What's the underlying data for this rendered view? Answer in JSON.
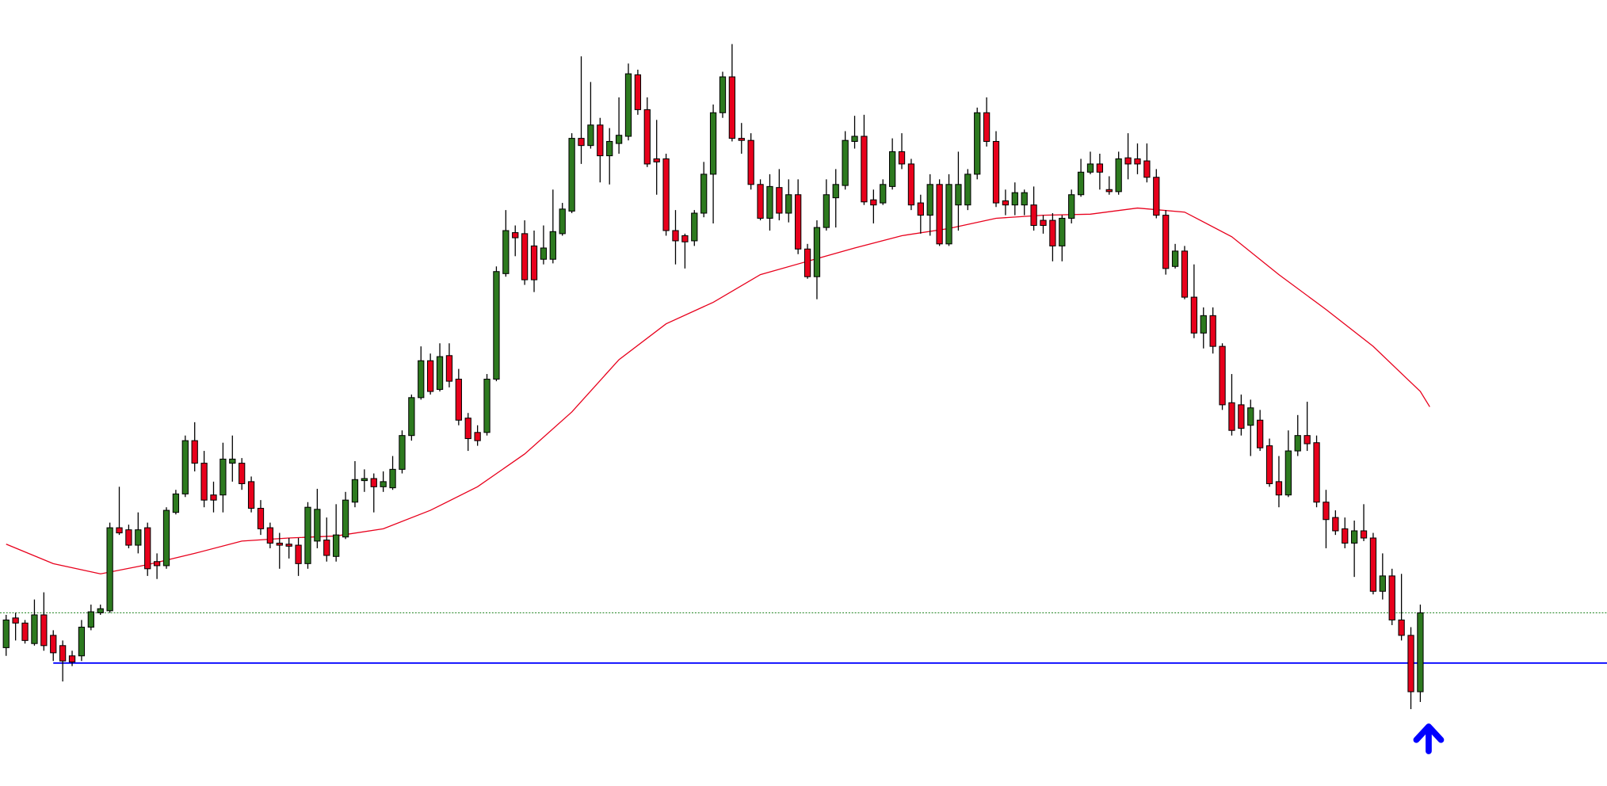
{
  "chart_data": {
    "type": "candlestick",
    "xlim": [
      -0.65,
      169.8
    ],
    "ylim": [
      0,
      767
    ],
    "up_color": "#2d7a1f",
    "down_color": "#e8001c",
    "wick_color": "#000000",
    "candles": {
      "open": [
        135,
        164,
        159,
        139,
        167,
        147,
        137,
        127,
        127,
        155,
        169,
        171,
        252,
        250,
        235,
        252,
        219,
        215,
        267,
        285,
        337,
        315,
        284,
        284,
        315,
        315,
        297,
        271,
        252,
        237,
        236,
        235,
        217,
        239,
        240,
        224,
        243,
        277,
        298,
        300,
        292,
        291,
        309,
        342,
        379,
        415,
        387,
        420,
        397,
        359,
        345,
        345,
        397,
        500,
        540,
        539,
        527,
        514,
        514,
        539,
        561,
        632,
        625,
        645,
        615,
        627,
        634,
        694,
        660,
        612,
        612,
        542,
        537,
        532,
        559,
        597,
        657,
        692,
        632,
        630,
        587,
        554,
        584,
        559,
        577,
        524,
        497,
        545,
        574,
        586,
        629,
        634,
        572,
        569,
        585,
        619,
        607,
        569,
        557,
        587,
        529,
        567,
        567,
        597,
        657,
        629,
        571,
        567,
        567,
        567,
        552,
        552,
        527,
        554,
        577,
        599,
        607,
        582,
        580,
        613,
        612,
        610,
        594,
        557,
        507,
        522,
        477,
        442,
        459,
        429,
        374,
        372,
        352,
        357,
        332,
        297,
        284,
        327,
        342,
        335,
        277,
        262,
        251,
        237,
        249,
        242,
        190,
        205,
        162,
        147,
        92
      ],
      "high": [
        167,
        169,
        162,
        182,
        189,
        152,
        142,
        132,
        162,
        177,
        177,
        257,
        292,
        255,
        267,
        257,
        227,
        272,
        289,
        342,
        355,
        327,
        297,
        335,
        342,
        320,
        302,
        279,
        257,
        247,
        242,
        242,
        277,
        290,
        262,
        275,
        287,
        317,
        309,
        305,
        307,
        322,
        347,
        382,
        429,
        422,
        432,
        432,
        407,
        364,
        352,
        402,
        507,
        562,
        547,
        552,
        542,
        547,
        582,
        569,
        637,
        712,
        687,
        652,
        642,
        672,
        705,
        699,
        672,
        650,
        617,
        562,
        539,
        562,
        609,
        665,
        697,
        724,
        647,
        637,
        592,
        597,
        602,
        592,
        592,
        529,
        552,
        592,
        602,
        639,
        654,
        655,
        582,
        592,
        632,
        637,
        612,
        577,
        597,
        592,
        597,
        619,
        602,
        662,
        672,
        639,
        582,
        589,
        582,
        585,
        557,
        559,
        557,
        582,
        612,
        619,
        617,
        595,
        619,
        637,
        627,
        627,
        602,
        562,
        529,
        527,
        509,
        467,
        467,
        432,
        402,
        382,
        377,
        367,
        339,
        322,
        347,
        362,
        375,
        342,
        289,
        269,
        262,
        259,
        275,
        247,
        227,
        212,
        207,
        155,
        177
      ],
      "low": [
        127,
        142,
        139,
        137,
        132,
        122,
        102,
        117,
        122,
        152,
        167,
        169,
        245,
        232,
        227,
        205,
        202,
        212,
        265,
        282,
        307,
        272,
        267,
        267,
        297,
        289,
        267,
        245,
        232,
        212,
        222,
        205,
        212,
        232,
        219,
        219,
        241,
        272,
        287,
        267,
        287,
        289,
        305,
        337,
        377,
        382,
        385,
        389,
        352,
        327,
        332,
        342,
        395,
        497,
        517,
        489,
        482,
        509,
        510,
        537,
        559,
        607,
        622,
        589,
        587,
        617,
        630,
        655,
        604,
        577,
        537,
        509,
        505,
        527,
        555,
        549,
        652,
        629,
        617,
        582,
        552,
        542,
        552,
        550,
        519,
        495,
        475,
        542,
        545,
        582,
        622,
        567,
        549,
        567,
        582,
        602,
        562,
        539,
        537,
        527,
        527,
        542,
        562,
        592,
        624,
        565,
        557,
        557,
        557,
        542,
        539,
        512,
        512,
        549,
        575,
        597,
        582,
        577,
        577,
        592,
        597,
        589,
        554,
        499,
        505,
        475,
        437,
        427,
        422,
        367,
        342,
        342,
        322,
        327,
        292,
        272,
        282,
        322,
        327,
        272,
        232,
        245,
        232,
        204,
        239,
        187,
        182,
        157,
        142,
        75,
        82
      ],
      "close": [
        162,
        159,
        142,
        167,
        137,
        130,
        122,
        121,
        155,
        170,
        173,
        252,
        247,
        235,
        250,
        212,
        215,
        269,
        285,
        337,
        315,
        279,
        279,
        319,
        319,
        295,
        271,
        251,
        237,
        235,
        234,
        217,
        272,
        270,
        225,
        245,
        279,
        299,
        300,
        292,
        297,
        309,
        342,
        379,
        415,
        385,
        419,
        395,
        357,
        339,
        337,
        397,
        502,
        542,
        535,
        494,
        494,
        525,
        541,
        563,
        632,
        625,
        645,
        615,
        629,
        635,
        695,
        660,
        607,
        609,
        542,
        532,
        531,
        559,
        597,
        657,
        692,
        632,
        630,
        587,
        554,
        585,
        559,
        577,
        524,
        497,
        545,
        577,
        587,
        630,
        634,
        570,
        567,
        587,
        619,
        607,
        567,
        557,
        587,
        529,
        587,
        587,
        597,
        657,
        629,
        569,
        567,
        579,
        579,
        547,
        547,
        527,
        554,
        577,
        599,
        607,
        599,
        580,
        612,
        607,
        607,
        594,
        557,
        505,
        522,
        477,
        442,
        459,
        429,
        372,
        347,
        349,
        369,
        330,
        295,
        284,
        327,
        342,
        334,
        277,
        260,
        249,
        237,
        249,
        242,
        190,
        205,
        162,
        147,
        92,
        169
      ]
    },
    "ma": {
      "color": "#e8001c",
      "x": [
        0,
        5,
        10,
        15,
        20,
        25,
        30,
        35,
        40,
        45,
        50,
        55,
        60,
        65,
        70,
        75,
        80,
        85,
        90,
        95,
        100,
        105,
        110,
        115,
        120,
        125,
        130,
        135,
        140,
        145,
        150,
        151
      ],
      "values": [
        236,
        217,
        207,
        216,
        227,
        239,
        242,
        244,
        251,
        269,
        292,
        324,
        365,
        416,
        451,
        472,
        499,
        512,
        525,
        537,
        544,
        554,
        557,
        558,
        564,
        560,
        536,
        499,
        465,
        429,
        385,
        370
      ]
    },
    "levels": [
      {
        "value": 120,
        "color": "#0000ff",
        "style": "solid",
        "x_start": 5
      },
      {
        "value": 169,
        "color": "#2e8b2e",
        "style": "dotted"
      }
    ]
  }
}
